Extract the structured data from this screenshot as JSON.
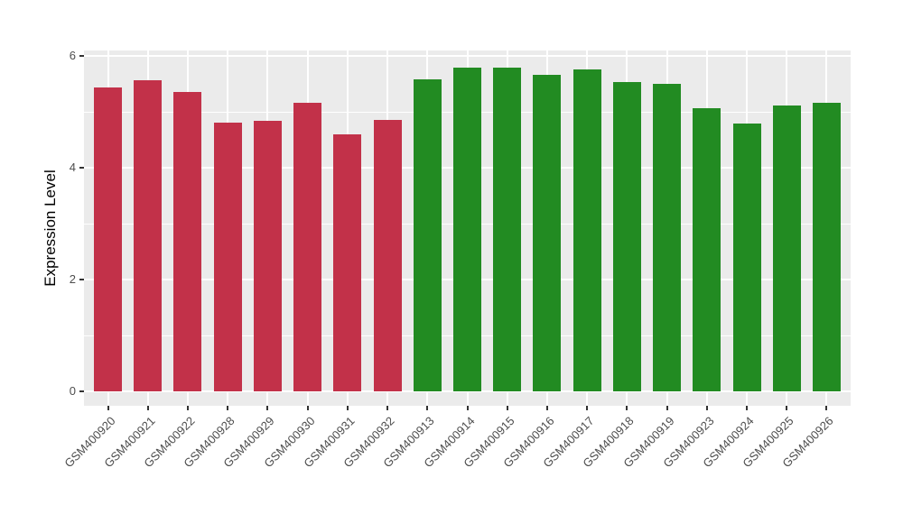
{
  "chart_data": {
    "type": "bar",
    "title": "",
    "xlabel": "",
    "ylabel": "Expression Level",
    "categories": [
      "GSM400920",
      "GSM400921",
      "GSM400922",
      "GSM400928",
      "GSM400929",
      "GSM400930",
      "GSM400931",
      "GSM400932",
      "GSM400913",
      "GSM400914",
      "GSM400915",
      "GSM400916",
      "GSM400917",
      "GSM400918",
      "GSM400919",
      "GSM400923",
      "GSM400924",
      "GSM400925",
      "GSM400926"
    ],
    "values": [
      5.42,
      5.55,
      5.35,
      4.8,
      4.83,
      5.15,
      4.59,
      4.84,
      5.58,
      5.78,
      5.79,
      5.66,
      5.75,
      5.52,
      5.49,
      5.06,
      4.79,
      5.11,
      5.15
    ],
    "bar_groups": [
      "red",
      "red",
      "red",
      "red",
      "red",
      "red",
      "red",
      "red",
      "green",
      "green",
      "green",
      "green",
      "green",
      "green",
      "green",
      "green",
      "green",
      "green",
      "green"
    ],
    "group_colors": {
      "red": "#C23149",
      "green": "#228B22"
    },
    "ylim": [
      0,
      6.09
    ],
    "yticks": [
      0,
      2,
      4,
      6
    ],
    "minor_gridlines": [
      1,
      3,
      5
    ],
    "grid": "on",
    "legend": "none",
    "theme": {
      "panel_background": "#EBEBEB",
      "gridline_color": "#FFFFFF",
      "tick_label_color": "#4D4D4D",
      "axis_title_color": "#000000",
      "tick_mark_color": "#333333",
      "figure_background": "#FFFFFF"
    }
  }
}
